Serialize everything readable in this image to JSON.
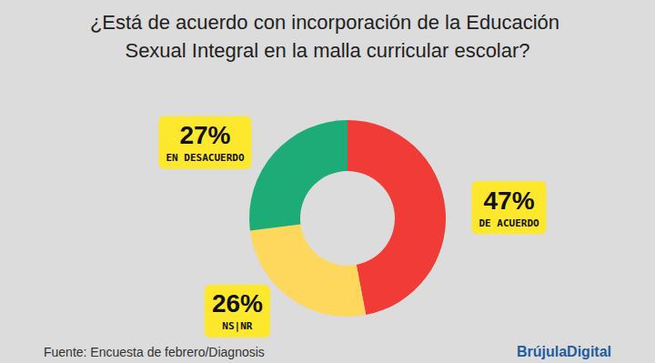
{
  "chart_data": {
    "type": "pie",
    "title": "¿Está de acuerdo con incorporación de la Educación Sexual Integral en la malla curricular escolar?",
    "categories": [
      "DE ACUERDO",
      "NS|NR",
      "EN DESACUERDO"
    ],
    "values": [
      47,
      26,
      27
    ],
    "value_labels": [
      "47%",
      "26%",
      "27%"
    ],
    "colors": [
      "#f03b36",
      "#fdd85d",
      "#1dab78"
    ],
    "data_labels": true,
    "annotations": [
      "Fuente: Encuesta de febrero/Diagnosis",
      "BrújulaDigital"
    ]
  }
}
